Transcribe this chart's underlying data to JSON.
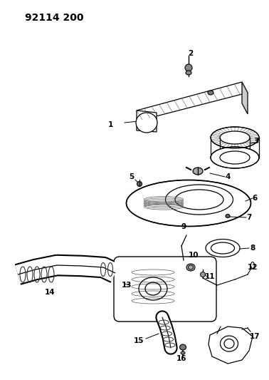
{
  "title": "92114 200",
  "background_color": "#ffffff",
  "line_color": "#000000",
  "figsize": [
    3.78,
    5.33
  ],
  "dpi": 100
}
